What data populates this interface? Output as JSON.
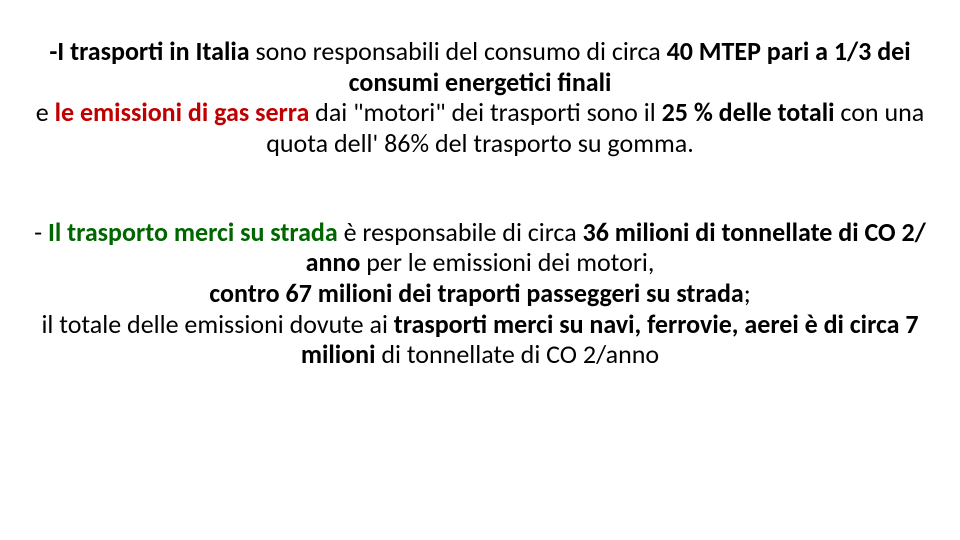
{
  "colors": {
    "red": "#c00000",
    "green": "#006600",
    "text": "#000000",
    "background": "#ffffff"
  },
  "fontsize_pt": 26,
  "line1_a": "-I trasporti in Italia",
  "line1_b": " sono responsabili del consumo di  circa ",
  "line1_c": "40 MTEP pari a  1/3 dei consumi energetici finali",
  "line2_a": "e ",
  "line2_b": "le emissioni di gas serra",
  "line2_c": " dai \"motori\"  dei trasporti sono il ",
  "line2_d": "25 % delle totali",
  "line2_e": " con una quota dell' 86% del trasporto su gomma.",
  "line3_a": "-   ",
  "line3_b": "Il trasporto merci su strada",
  "line3_c": " è responsabile  di circa ",
  "line3_d": "36 milioni di tonnellate di CO 2/ anno",
  "line3_e": " per le emissioni dei motori,",
  "line4_a": "contro 67 milioni dei traporti passeggeri su strada",
  "line4_b": ";",
  "line5_a": "il totale delle emissioni dovute ai ",
  "line5_b": "trasporti merci su navi, ferrovie, aerei è di circa 7 milioni",
  "line5_c": " di tonnellate di CO 2/anno"
}
